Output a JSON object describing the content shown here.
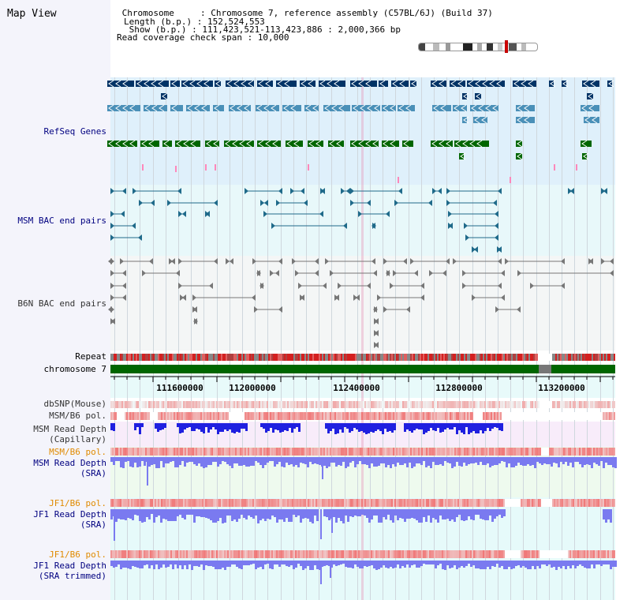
{
  "app": {
    "title": "Map View"
  },
  "info": {
    "chromosome_line": " Chromosome     : Chromosome 7, reference assembly (C57BL/6J) (Build 37)",
    "length_line": "Length (b.p.) : 152,524,553",
    "show_line": " Show (b.p.) : 111,423,521-113,423,886 : 2,000,366 bp",
    "coverage_line": "Read coverage check span : 10,000"
  },
  "tracks": {
    "refseq": "RefSeq Genes",
    "msm_bac": "MSM BAC end pairs",
    "b6n_bac": "B6N BAC end pairs",
    "repeat": "Repeat",
    "chromosome": "chromosome 7",
    "dbsnp": "dbSNP(Mouse)",
    "msm_pol": "MSM/B6 pol.",
    "msm_depth_cap_1": "MSM Read Depth",
    "msm_depth_cap_2": "(Capillary)",
    "msm_pol_2": "MSM/B6 pol.",
    "msm_depth_sra_1": "MSM Read Depth",
    "msm_depth_sra_2": "(SRA)",
    "jf1_pol": "JF1/B6 pol.",
    "jf1_depth_sra_1": "JF1 Read Depth",
    "jf1_depth_sra_2": "(SRA)",
    "jf1_pol_2": "JF1/B6 pol.",
    "jf1_depth_trim_1": "JF1 Read Depth",
    "jf1_depth_trim_2": "(SRA trimmed)"
  },
  "axis": {
    "ticks": [
      "111600000",
      "112000000",
      "112400000",
      "112800000",
      "113200000"
    ]
  },
  "colors": {
    "gene_navy": "#003366",
    "gene_teal": "#4a90b8",
    "gene_green": "#006600",
    "refseq_bg": "#dff0fb",
    "bac_bg": "#e8f8fa",
    "chromosome_green": "#006600",
    "depth_blue": "#2020e0",
    "depth_lavender": "#7a7af0"
  }
}
